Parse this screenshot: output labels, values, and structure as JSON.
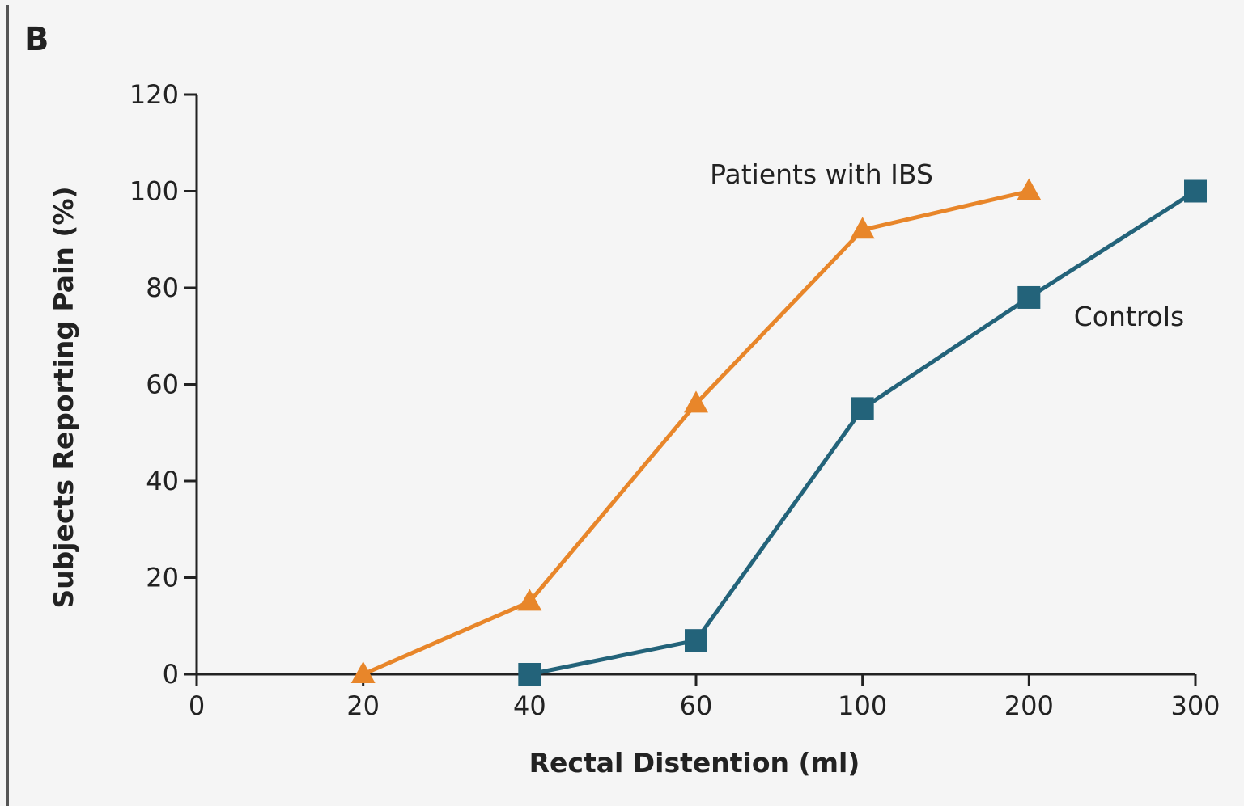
{
  "panel_label": "B",
  "chart_data": {
    "type": "line",
    "xlabel": "Rectal Distention (ml)",
    "ylabel": "Subjects Reporting Pain (%)",
    "x_categories": [
      "0",
      "20",
      "40",
      "60",
      "100",
      "200",
      "300"
    ],
    "x_scale": "categorical",
    "ylim": [
      0,
      120
    ],
    "y_ticks": [
      0,
      20,
      40,
      60,
      80,
      100,
      120
    ],
    "grid": false,
    "legend": "inline labels",
    "series": [
      {
        "name": "Patients with IBS",
        "color": "#e8862a",
        "marker": "triangle",
        "points": [
          {
            "x": "20",
            "y": 0
          },
          {
            "x": "40",
            "y": 15
          },
          {
            "x": "60",
            "y": 56
          },
          {
            "x": "100",
            "y": 92
          },
          {
            "x": "200",
            "y": 100
          }
        ]
      },
      {
        "name": "Controls",
        "color": "#23637a",
        "marker": "square",
        "points": [
          {
            "x": "40",
            "y": 0
          },
          {
            "x": "60",
            "y": 7
          },
          {
            "x": "100",
            "y": 55
          },
          {
            "x": "200",
            "y": 78
          },
          {
            "x": "300",
            "y": 100
          }
        ]
      }
    ]
  }
}
